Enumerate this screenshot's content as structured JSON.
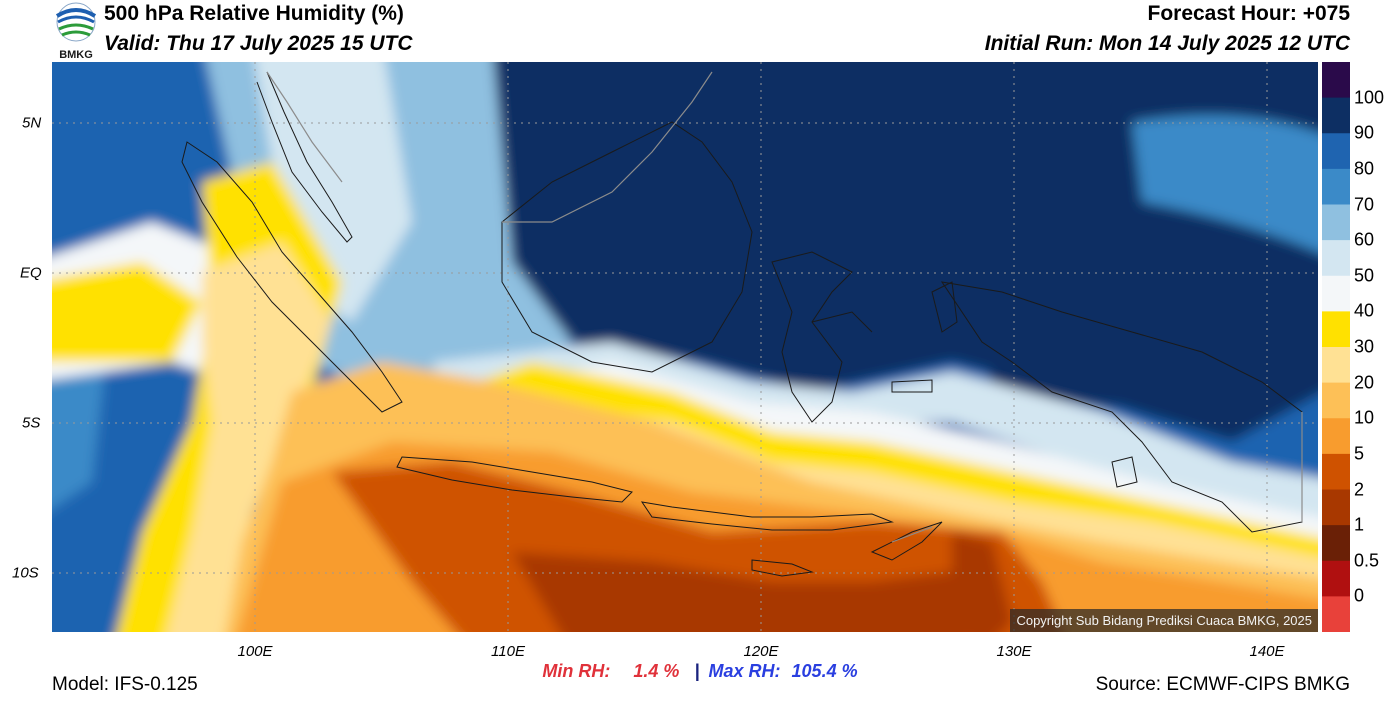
{
  "header": {
    "title": "500 hPa Relative Humidity (%)",
    "valid": "Valid: Thu 17 July 2025 15 UTC",
    "forecast_hour": "Forecast Hour: +075",
    "initial_run": "Initial Run: Mon 14 July 2025 12 UTC"
  },
  "logo": {
    "text": "BMKG",
    "icon": "bmkg-logo-icon"
  },
  "map": {
    "lat_labels": [
      "5N",
      "EQ",
      "5S",
      "10S"
    ],
    "lon_labels": [
      "100E",
      "110E",
      "120E",
      "130E",
      "140E"
    ],
    "copyright": "Copyright Sub Bidang Prediksi Cuaca BMKG, 2025"
  },
  "colorbar": {
    "labels": [
      "100",
      "90",
      "80",
      "70",
      "60",
      "50",
      "40",
      "30",
      "20",
      "10",
      "5",
      "2",
      "1",
      "0.5",
      "0"
    ],
    "colors": [
      "#2a0a4a",
      "#0d2f63",
      "#1f64b0",
      "#3b8ac8",
      "#8fc0e0",
      "#d3e6f1",
      "#f4f7f9",
      "#ffe100",
      "#ffe194",
      "#fdc057",
      "#f89c2e",
      "#cf5200",
      "#a83800",
      "#6a2006",
      "#b01010",
      "#e8413a"
    ]
  },
  "stats": {
    "min_label": "Min RH:",
    "min_value": "1.4 %",
    "separator": "|",
    "max_label": "Max RH:",
    "max_value": "105.4 %"
  },
  "footer": {
    "model": "Model: IFS-0.125",
    "source": "Source: ECMWF-CIPS BMKG"
  }
}
